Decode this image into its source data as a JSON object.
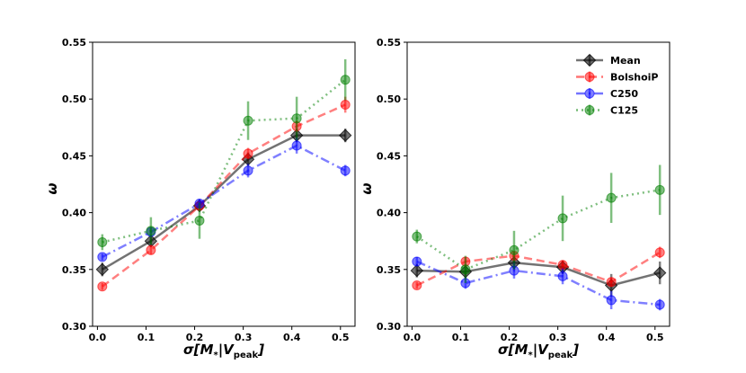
{
  "chart_data": [
    {
      "type": "line",
      "panel": "left",
      "xlabel_text": "σ[M",
      "xlabel_sub_star": "*",
      "xlabel_bar": "|V",
      "xlabel_sub_peak": "peak",
      "xlabel_close": "]",
      "ylabel": "ω",
      "xlim": [
        -0.01,
        0.53
      ],
      "ylim": [
        0.3,
        0.55
      ],
      "xticks": [
        0.0,
        0.1,
        0.2,
        0.3,
        0.4,
        0.5
      ],
      "xtick_labels": [
        "0.0",
        "0.1",
        "0.2",
        "0.3",
        "0.4",
        "0.5"
      ],
      "yticks": [
        0.3,
        0.35,
        0.4,
        0.45,
        0.5,
        0.55
      ],
      "ytick_labels": [
        "0.30",
        "0.35",
        "0.40",
        "0.45",
        "0.50",
        "0.55"
      ],
      "series": [
        {
          "name": "Mean",
          "color": "#000000",
          "dash": "solid",
          "marker": "diamond",
          "x": [
            0.01,
            0.11,
            0.21,
            0.31,
            0.41,
            0.51
          ],
          "y": [
            0.35,
            0.375,
            0.406,
            0.447,
            0.468,
            0.468
          ],
          "err": [
            0.006,
            0.005,
            0.004,
            0.006,
            0.006,
            0.006
          ]
        },
        {
          "name": "BolshoiP",
          "color": "#ff0000",
          "dash": "dashed",
          "marker": "circle",
          "x": [
            0.01,
            0.11,
            0.21,
            0.31,
            0.41,
            0.51
          ],
          "y": [
            0.335,
            0.367,
            0.406,
            0.452,
            0.476,
            0.495
          ],
          "err": [
            0.003,
            0.004,
            0.004,
            0.005,
            0.005,
            0.007
          ]
        },
        {
          "name": "C250",
          "color": "#0000ff",
          "dash": "dashdot",
          "marker": "circle",
          "x": [
            0.01,
            0.11,
            0.21,
            0.31,
            0.41,
            0.51
          ],
          "y": [
            0.361,
            0.383,
            0.408,
            0.437,
            0.459,
            0.437
          ],
          "err": [
            0.003,
            0.004,
            0.004,
            0.006,
            0.007,
            0.005
          ]
        },
        {
          "name": "C125",
          "color": "#008000",
          "dash": "dotted",
          "marker": "circle",
          "x": [
            0.01,
            0.11,
            0.21,
            0.31,
            0.41,
            0.51
          ],
          "y": [
            0.374,
            0.384,
            0.393,
            0.481,
            0.483,
            0.517
          ],
          "err": [
            0.007,
            0.012,
            0.016,
            0.017,
            0.019,
            0.018
          ]
        }
      ]
    },
    {
      "type": "line",
      "panel": "right",
      "xlabel_text": "σ[M",
      "xlabel_sub_star": "*",
      "xlabel_bar": "|V",
      "xlabel_sub_peak": "peak",
      "xlabel_close": "]",
      "ylabel": "ω",
      "xlim": [
        -0.01,
        0.53
      ],
      "ylim": [
        0.3,
        0.55
      ],
      "xticks": [
        0.0,
        0.1,
        0.2,
        0.3,
        0.4,
        0.5
      ],
      "xtick_labels": [
        "0.0",
        "0.1",
        "0.2",
        "0.3",
        "0.4",
        "0.5"
      ],
      "yticks": [
        0.3,
        0.35,
        0.4,
        0.45,
        0.5,
        0.55
      ],
      "ytick_labels": [
        "0.30",
        "0.35",
        "0.40",
        "0.45",
        "0.50",
        "0.55"
      ],
      "legend": {
        "location": "top-right",
        "entries": [
          "Mean",
          "BolshoiP",
          "C250",
          "C125"
        ]
      },
      "series": [
        {
          "name": "Mean",
          "color": "#000000",
          "dash": "solid",
          "marker": "diamond",
          "x": [
            0.01,
            0.11,
            0.21,
            0.31,
            0.41,
            0.51
          ],
          "y": [
            0.349,
            0.348,
            0.356,
            0.352,
            0.336,
            0.347
          ],
          "err": [
            0.006,
            0.006,
            0.006,
            0.006,
            0.01,
            0.01
          ]
        },
        {
          "name": "BolshoiP",
          "color": "#ff0000",
          "dash": "dashed",
          "marker": "circle",
          "x": [
            0.01,
            0.11,
            0.21,
            0.31,
            0.41,
            0.51
          ],
          "y": [
            0.336,
            0.357,
            0.362,
            0.354,
            0.339,
            0.365
          ],
          "err": [
            0.003,
            0.004,
            0.004,
            0.004,
            0.004,
            0.005
          ]
        },
        {
          "name": "C250",
          "color": "#0000ff",
          "dash": "dashdot",
          "marker": "circle",
          "x": [
            0.01,
            0.11,
            0.21,
            0.31,
            0.41,
            0.51
          ],
          "y": [
            0.357,
            0.338,
            0.349,
            0.344,
            0.323,
            0.319
          ],
          "err": [
            0.004,
            0.005,
            0.007,
            0.007,
            0.008,
            0.005
          ]
        },
        {
          "name": "C125",
          "color": "#008000",
          "dash": "dotted",
          "marker": "circle",
          "x": [
            0.01,
            0.11,
            0.21,
            0.31,
            0.41,
            0.51
          ],
          "y": [
            0.379,
            0.35,
            0.367,
            0.395,
            0.413,
            0.42
          ],
          "err": [
            0.006,
            0.012,
            0.017,
            0.02,
            0.022,
            0.022
          ]
        }
      ]
    }
  ]
}
